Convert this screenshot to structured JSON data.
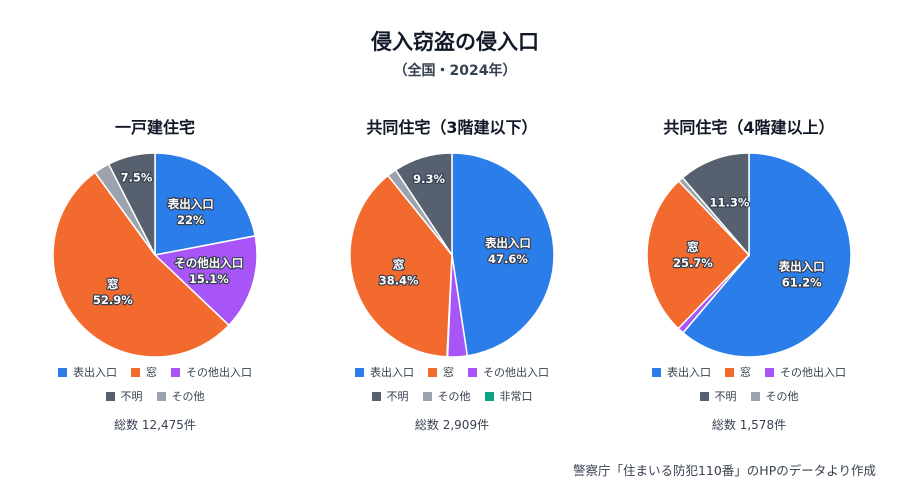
{
  "title": "侵入窃盗の侵入口",
  "subtitle": "（全国・2024年）",
  "source": "警察庁「住まいる防犯110番」のHPのデータより作成",
  "colors": {
    "表出入口": "#2b7de9",
    "窓": "#f26a2e",
    "その他出入口": "#a855f7",
    "不明": "#56606e",
    "その他": "#9ca3af",
    "非常口": "#10a37f"
  },
  "chart_data": [
    {
      "type": "pie",
      "title": "一戸建住宅",
      "total_label": "総数 12,475件",
      "slices": [
        {
          "name": "表出入口",
          "value": 22.0,
          "label": [
            "表出入口",
            "22%"
          ]
        },
        {
          "name": "その他出入口",
          "value": 15.1,
          "label": [
            "その他出入口",
            "15.1%"
          ]
        },
        {
          "name": "窓",
          "value": 52.9,
          "label": [
            "窓",
            "52.9%"
          ]
        },
        {
          "name": "その他",
          "value": 2.5,
          "label": null
        },
        {
          "name": "不明",
          "value": 7.5,
          "label": [
            "7.5%"
          ]
        }
      ],
      "legend": [
        [
          "表出入口",
          "窓",
          "その他出入口"
        ],
        [
          "不明",
          "その他"
        ]
      ]
    },
    {
      "type": "pie",
      "title": "共同住宅（3階建以下）",
      "total_label": "総数 2,909件",
      "slices": [
        {
          "name": "表出入口",
          "value": 47.6,
          "label": [
            "表出入口",
            "47.6%"
          ]
        },
        {
          "name": "その他出入口",
          "value": 3.1,
          "label": null
        },
        {
          "name": "非常口",
          "value": 0.1,
          "label": null
        },
        {
          "name": "窓",
          "value": 38.4,
          "label": [
            "窓",
            "38.4%"
          ]
        },
        {
          "name": "その他",
          "value": 1.5,
          "label": null
        },
        {
          "name": "不明",
          "value": 9.3,
          "label": [
            "9.3%"
          ]
        }
      ],
      "legend": [
        [
          "表出入口",
          "窓",
          "その他出入口"
        ],
        [
          "不明",
          "その他",
          "非常口"
        ]
      ]
    },
    {
      "type": "pie",
      "title": "共同住宅（4階建以上）",
      "total_label": "総数 1,578件",
      "slices": [
        {
          "name": "表出入口",
          "value": 61.2,
          "label": [
            "表出入口",
            "61.2%"
          ]
        },
        {
          "name": "その他出入口",
          "value": 1.0,
          "label": null
        },
        {
          "name": "窓",
          "value": 25.7,
          "label": [
            "窓",
            "25.7%"
          ]
        },
        {
          "name": "その他",
          "value": 0.8,
          "label": null
        },
        {
          "name": "不明",
          "value": 11.3,
          "label": [
            "11.3%"
          ]
        }
      ],
      "legend": [
        [
          "表出入口",
          "窓",
          "その他出入口"
        ],
        [
          "不明",
          "その他"
        ]
      ]
    }
  ]
}
